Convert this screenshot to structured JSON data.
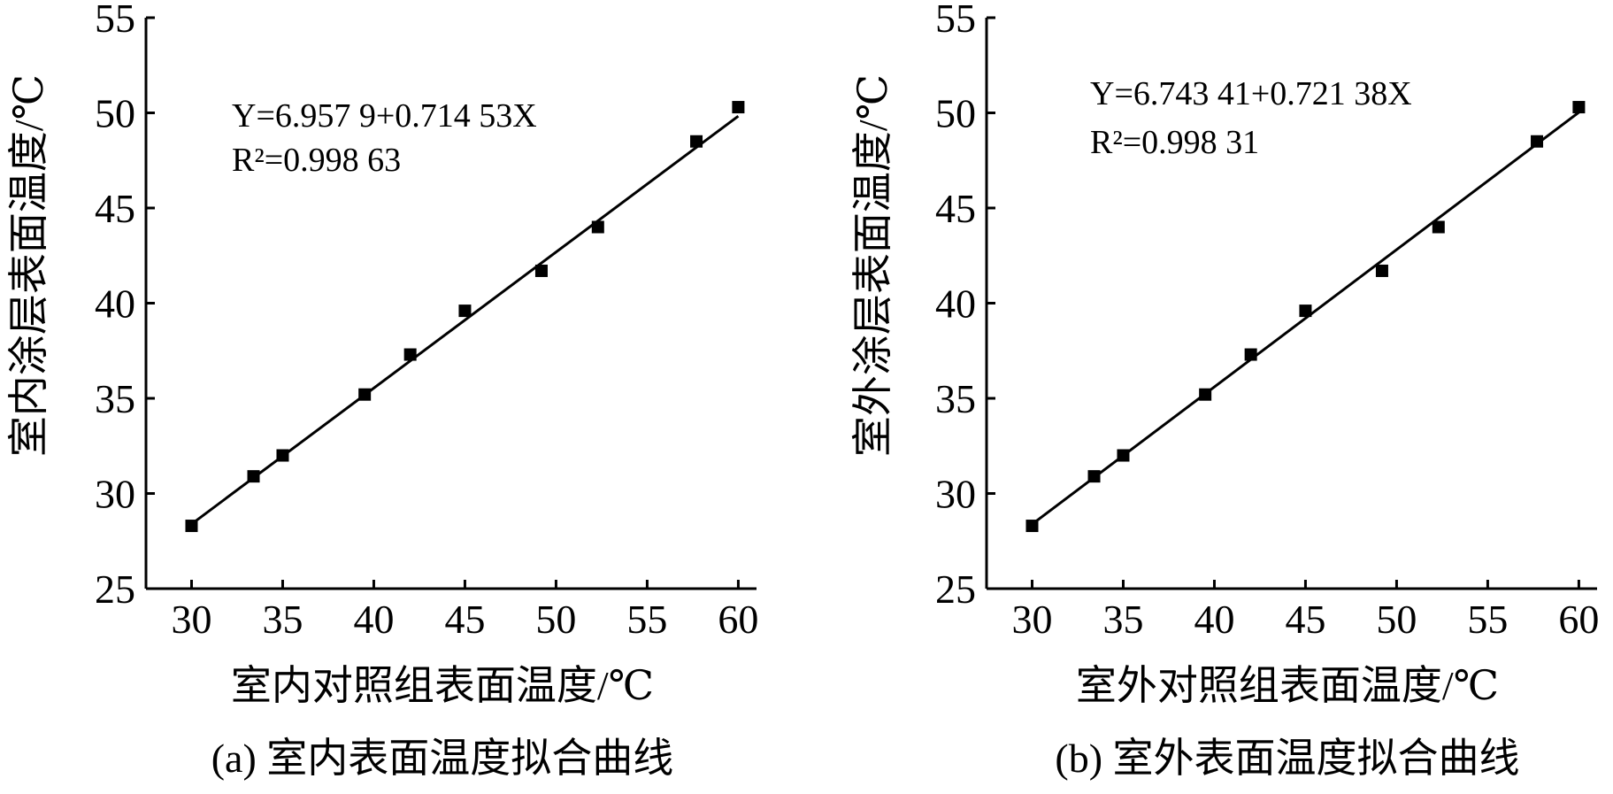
{
  "chart_data": [
    {
      "type": "scatter",
      "xlabel": "室内对照组表面温度/℃",
      "ylabel": "室内涂层表面温度/℃",
      "caption": "(a) 室内表面温度拟合曲线",
      "equation_line1": "Y=6.957 9+0.714 53X",
      "equation_line2": "R²=0.998 63",
      "fit": {
        "intercept": 6.9579,
        "slope": 0.71453
      },
      "xlim": [
        27.5,
        61
      ],
      "ylim": [
        25,
        55
      ],
      "xticks": [
        "30",
        "35",
        "40",
        "45",
        "50",
        "55",
        "60"
      ],
      "yticks": [
        "25",
        "30",
        "35",
        "40",
        "45",
        "50",
        "55"
      ],
      "points": [
        {
          "x": 30,
          "y": 28.3
        },
        {
          "x": 33.4,
          "y": 30.9
        },
        {
          "x": 35,
          "y": 32.0
        },
        {
          "x": 39.5,
          "y": 35.2
        },
        {
          "x": 42,
          "y": 37.3
        },
        {
          "x": 45,
          "y": 39.6
        },
        {
          "x": 49.2,
          "y": 41.7
        },
        {
          "x": 52.3,
          "y": 44.0
        },
        {
          "x": 57.7,
          "y": 48.5
        },
        {
          "x": 60,
          "y": 50.3
        }
      ]
    },
    {
      "type": "scatter",
      "xlabel": "室外对照组表面温度/℃",
      "ylabel": "室外涂层表面温度/℃",
      "caption": "(b) 室外表面温度拟合曲线",
      "equation_line1": "Y=6.743 41+0.721 38X",
      "equation_line2": "R²=0.998 31",
      "fit": {
        "intercept": 6.74341,
        "slope": 0.72138
      },
      "xlim": [
        27.5,
        61
      ],
      "ylim": [
        25,
        55
      ],
      "xticks": [
        "30",
        "35",
        "40",
        "45",
        "50",
        "55",
        "60"
      ],
      "yticks": [
        "25",
        "30",
        "35",
        "40",
        "45",
        "50",
        "55"
      ],
      "points": [
        {
          "x": 30,
          "y": 28.3
        },
        {
          "x": 33.4,
          "y": 30.9
        },
        {
          "x": 35,
          "y": 32.0
        },
        {
          "x": 39.5,
          "y": 35.2
        },
        {
          "x": 42,
          "y": 37.3
        },
        {
          "x": 45,
          "y": 39.6
        },
        {
          "x": 49.2,
          "y": 41.7
        },
        {
          "x": 52.3,
          "y": 44.0
        },
        {
          "x": 57.7,
          "y": 48.5
        },
        {
          "x": 60,
          "y": 50.3
        }
      ]
    }
  ]
}
